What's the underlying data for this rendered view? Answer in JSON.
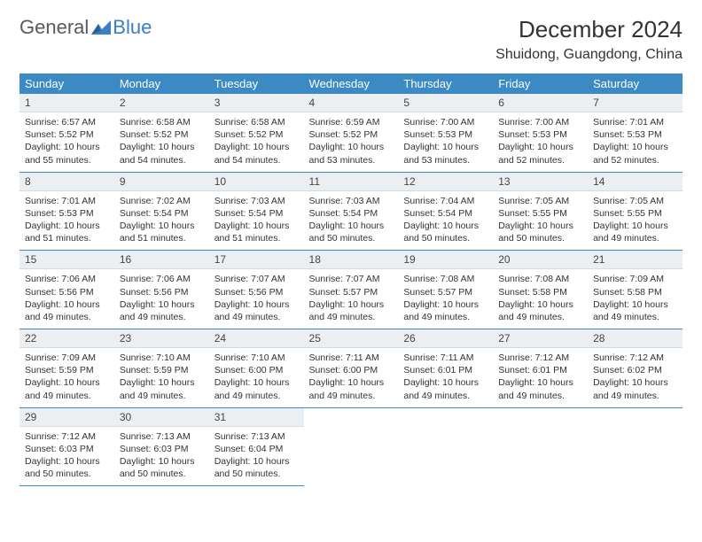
{
  "logo": {
    "word1": "General",
    "word2": "Blue"
  },
  "title": "December 2024",
  "location": "Shuidong, Guangdong, China",
  "colors": {
    "header_bg": "#3b8ac4",
    "header_text": "#ffffff",
    "daynum_bg": "#eceff1",
    "row_border": "#3b8ac4",
    "text": "#333333",
    "logo_gray": "#5a5a5a",
    "logo_blue": "#3b7fc4"
  },
  "weekdays": [
    "Sunday",
    "Monday",
    "Tuesday",
    "Wednesday",
    "Thursday",
    "Friday",
    "Saturday"
  ],
  "weeks": [
    [
      {
        "n": "1",
        "sr": "6:57 AM",
        "ss": "5:52 PM",
        "dl": "10 hours and 55 minutes."
      },
      {
        "n": "2",
        "sr": "6:58 AM",
        "ss": "5:52 PM",
        "dl": "10 hours and 54 minutes."
      },
      {
        "n": "3",
        "sr": "6:58 AM",
        "ss": "5:52 PM",
        "dl": "10 hours and 54 minutes."
      },
      {
        "n": "4",
        "sr": "6:59 AM",
        "ss": "5:52 PM",
        "dl": "10 hours and 53 minutes."
      },
      {
        "n": "5",
        "sr": "7:00 AM",
        "ss": "5:53 PM",
        "dl": "10 hours and 53 minutes."
      },
      {
        "n": "6",
        "sr": "7:00 AM",
        "ss": "5:53 PM",
        "dl": "10 hours and 52 minutes."
      },
      {
        "n": "7",
        "sr": "7:01 AM",
        "ss": "5:53 PM",
        "dl": "10 hours and 52 minutes."
      }
    ],
    [
      {
        "n": "8",
        "sr": "7:01 AM",
        "ss": "5:53 PM",
        "dl": "10 hours and 51 minutes."
      },
      {
        "n": "9",
        "sr": "7:02 AM",
        "ss": "5:54 PM",
        "dl": "10 hours and 51 minutes."
      },
      {
        "n": "10",
        "sr": "7:03 AM",
        "ss": "5:54 PM",
        "dl": "10 hours and 51 minutes."
      },
      {
        "n": "11",
        "sr": "7:03 AM",
        "ss": "5:54 PM",
        "dl": "10 hours and 50 minutes."
      },
      {
        "n": "12",
        "sr": "7:04 AM",
        "ss": "5:54 PM",
        "dl": "10 hours and 50 minutes."
      },
      {
        "n": "13",
        "sr": "7:05 AM",
        "ss": "5:55 PM",
        "dl": "10 hours and 50 minutes."
      },
      {
        "n": "14",
        "sr": "7:05 AM",
        "ss": "5:55 PM",
        "dl": "10 hours and 49 minutes."
      }
    ],
    [
      {
        "n": "15",
        "sr": "7:06 AM",
        "ss": "5:56 PM",
        "dl": "10 hours and 49 minutes."
      },
      {
        "n": "16",
        "sr": "7:06 AM",
        "ss": "5:56 PM",
        "dl": "10 hours and 49 minutes."
      },
      {
        "n": "17",
        "sr": "7:07 AM",
        "ss": "5:56 PM",
        "dl": "10 hours and 49 minutes."
      },
      {
        "n": "18",
        "sr": "7:07 AM",
        "ss": "5:57 PM",
        "dl": "10 hours and 49 minutes."
      },
      {
        "n": "19",
        "sr": "7:08 AM",
        "ss": "5:57 PM",
        "dl": "10 hours and 49 minutes."
      },
      {
        "n": "20",
        "sr": "7:08 AM",
        "ss": "5:58 PM",
        "dl": "10 hours and 49 minutes."
      },
      {
        "n": "21",
        "sr": "7:09 AM",
        "ss": "5:58 PM",
        "dl": "10 hours and 49 minutes."
      }
    ],
    [
      {
        "n": "22",
        "sr": "7:09 AM",
        "ss": "5:59 PM",
        "dl": "10 hours and 49 minutes."
      },
      {
        "n": "23",
        "sr": "7:10 AM",
        "ss": "5:59 PM",
        "dl": "10 hours and 49 minutes."
      },
      {
        "n": "24",
        "sr": "7:10 AM",
        "ss": "6:00 PM",
        "dl": "10 hours and 49 minutes."
      },
      {
        "n": "25",
        "sr": "7:11 AM",
        "ss": "6:00 PM",
        "dl": "10 hours and 49 minutes."
      },
      {
        "n": "26",
        "sr": "7:11 AM",
        "ss": "6:01 PM",
        "dl": "10 hours and 49 minutes."
      },
      {
        "n": "27",
        "sr": "7:12 AM",
        "ss": "6:01 PM",
        "dl": "10 hours and 49 minutes."
      },
      {
        "n": "28",
        "sr": "7:12 AM",
        "ss": "6:02 PM",
        "dl": "10 hours and 49 minutes."
      }
    ],
    [
      {
        "n": "29",
        "sr": "7:12 AM",
        "ss": "6:03 PM",
        "dl": "10 hours and 50 minutes."
      },
      {
        "n": "30",
        "sr": "7:13 AM",
        "ss": "6:03 PM",
        "dl": "10 hours and 50 minutes."
      },
      {
        "n": "31",
        "sr": "7:13 AM",
        "ss": "6:04 PM",
        "dl": "10 hours and 50 minutes."
      },
      null,
      null,
      null,
      null
    ]
  ],
  "labels": {
    "sunrise": "Sunrise:",
    "sunset": "Sunset:",
    "daylight": "Daylight:"
  }
}
